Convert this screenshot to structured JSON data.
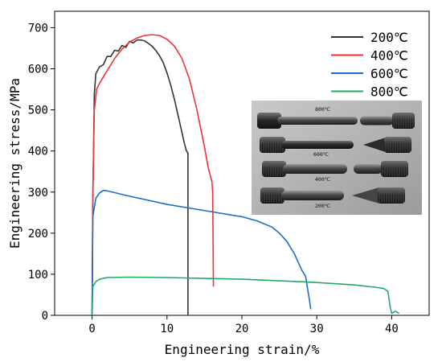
{
  "chart_data": {
    "type": "line",
    "title": "",
    "xlabel": "Engineering strain/%",
    "ylabel": "Engineering stress/MPa",
    "xlim": [
      -5,
      45
    ],
    "ylim": [
      0,
      740
    ],
    "x_ticks": [
      0,
      10,
      20,
      30,
      40
    ],
    "y_ticks": [
      0,
      100,
      200,
      300,
      400,
      500,
      600,
      700
    ],
    "legend": {
      "placement": "top-right",
      "entries": [
        "200℃",
        "400℃",
        "600℃",
        "800℃"
      ]
    },
    "grid": false,
    "series": [
      {
        "name": "200℃",
        "color": "#333333",
        "x": [
          0,
          0.1,
          0.3,
          0.5,
          1,
          1.5,
          2,
          2.5,
          3,
          3.5,
          4,
          4.5,
          5,
          5.5,
          6,
          6.5,
          7,
          7.5,
          8,
          8.5,
          9,
          9.5,
          10,
          10.5,
          11,
          11.5,
          12,
          12.3,
          12.6,
          12.8,
          12.8
        ],
        "y": [
          0,
          280,
          540,
          588,
          600,
          615,
          625,
          635,
          640,
          648,
          652,
          657,
          662,
          668,
          670,
          670,
          668,
          662,
          655,
          645,
          632,
          615,
          590,
          560,
          525,
          485,
          445,
          420,
          400,
          395,
          0
        ]
      },
      {
        "name": "400℃",
        "color": "#ee3333",
        "x": [
          0,
          0.1,
          0.3,
          0.6,
          1,
          2,
          3,
          4,
          5,
          6,
          7,
          8,
          9,
          10,
          11,
          12,
          13,
          14,
          15,
          15.5,
          16,
          16.1,
          16.2
        ],
        "y": [
          0,
          300,
          500,
          550,
          565,
          595,
          625,
          648,
          665,
          675,
          681,
          683,
          681,
          672,
          655,
          625,
          575,
          500,
          410,
          360,
          325,
          300,
          70
        ]
      },
      {
        "name": "600℃",
        "color": "#1a6fcc",
        "x": [
          0,
          0.1,
          0.5,
          1,
          1.5,
          2,
          5,
          10,
          15,
          20,
          22,
          24,
          25,
          26,
          27,
          28,
          28.5,
          29,
          29.2
        ],
        "y": [
          0,
          240,
          285,
          298,
          304,
          303,
          290,
          270,
          255,
          240,
          230,
          215,
          200,
          180,
          150,
          110,
          95,
          40,
          15
        ]
      },
      {
        "name": "800℃",
        "color": "#22aa66",
        "x": [
          0,
          0.1,
          0.5,
          1,
          2,
          5,
          10,
          15,
          20,
          25,
          30,
          35,
          38,
          39,
          39.5,
          39.8,
          40,
          40.5,
          41
        ],
        "y": [
          0,
          70,
          82,
          88,
          92,
          93,
          92,
          90,
          88,
          84,
          80,
          74,
          68,
          65,
          58,
          20,
          5,
          10,
          5
        ]
      }
    ],
    "inset_photo": {
      "labels": [
        "800℃",
        "600℃",
        "400℃",
        "200℃"
      ]
    }
  }
}
